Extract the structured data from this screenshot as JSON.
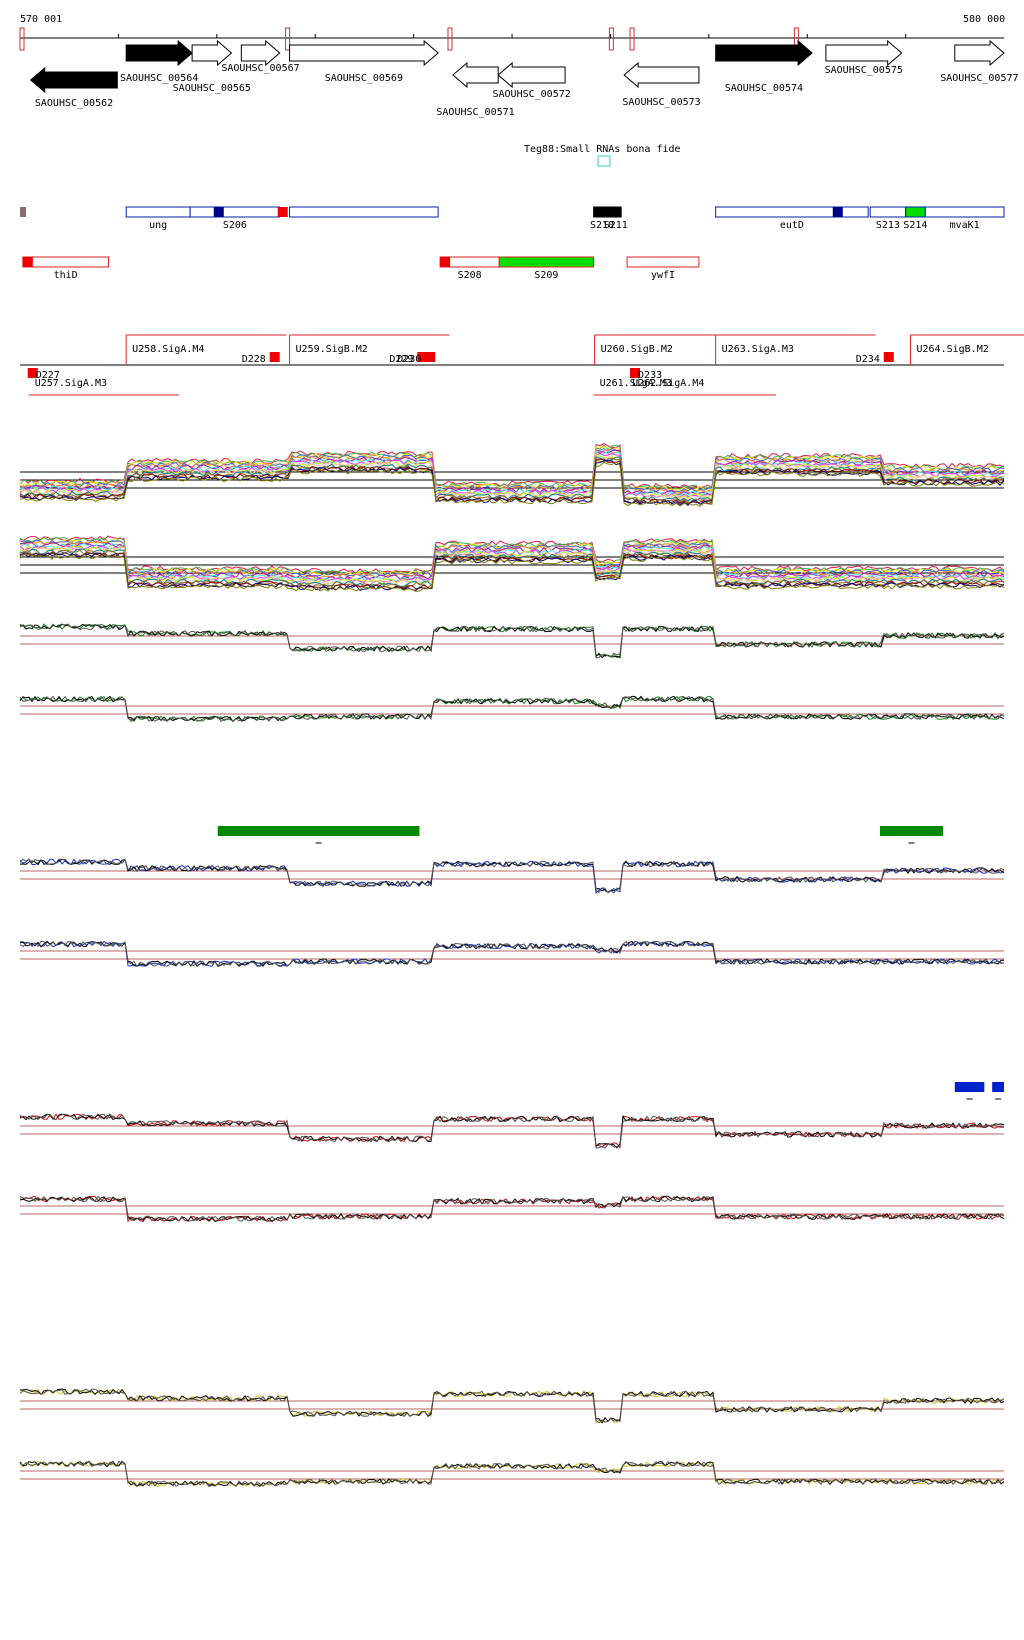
{
  "ruler": {
    "start_label": "570 001",
    "end_label": "580 000",
    "start": 570001,
    "end": 580000
  },
  "annotation_label": "Teg88:Small RNAs bona fide",
  "genes": [
    {
      "id": "g562",
      "label": "SAOUHSC_00562",
      "start": 570110,
      "end": 570990,
      "strand": "-",
      "fill": "black"
    },
    {
      "id": "g564",
      "label": "SAOUHSC_00564",
      "start": 571080,
      "end": 571750,
      "strand": "+",
      "fill": "black"
    },
    {
      "id": "g565",
      "label": "SAOUHSC_00565",
      "start": 571750,
      "end": 572150,
      "strand": "+",
      "fill": "white"
    },
    {
      "id": "g567",
      "label": "SAOUHSC_00567",
      "start": 572250,
      "end": 572640,
      "strand": "+",
      "fill": "white"
    },
    {
      "id": "g569",
      "label": "SAOUHSC_00569",
      "start": 572740,
      "end": 574250,
      "strand": "+",
      "fill": "white"
    },
    {
      "id": "g571",
      "label": "SAOUHSC_00571",
      "start": 574400,
      "end": 574860,
      "strand": "-",
      "fill": "white"
    },
    {
      "id": "g572",
      "label": "SAOUHSC_00572",
      "start": 574860,
      "end": 575540,
      "strand": "-",
      "fill": "white"
    },
    {
      "id": "g573",
      "label": "SAOUHSC_00573",
      "start": 576140,
      "end": 576900,
      "strand": "-",
      "fill": "white"
    },
    {
      "id": "g574",
      "label": "SAOUHSC_00574",
      "start": 577070,
      "end": 578050,
      "strand": "+",
      "fill": "black"
    },
    {
      "id": "g575",
      "label": "SAOUHSC_00575",
      "start": 578190,
      "end": 578960,
      "strand": "+",
      "fill": "white"
    },
    {
      "id": "g577",
      "label": "SAOUHSC_00577",
      "start": 579500,
      "end": 580000,
      "strand": "+",
      "fill": "white"
    }
  ],
  "rna_track_top": [
    {
      "label": "",
      "start": 570001,
      "end": 570080
    },
    {
      "label": "ung",
      "start": 571080,
      "end": 571730
    },
    {
      "label": "S206",
      "start": 571730,
      "end": 572640
    },
    {
      "label": "",
      "start": 572740,
      "end": 574250
    },
    {
      "label": "S210",
      "start": 575830,
      "end": 576000
    },
    {
      "label": "S211",
      "start": 576000,
      "end": 576110
    },
    {
      "label": "eutD",
      "start": 577070,
      "end": 578620
    },
    {
      "label": "S213",
      "start": 578640,
      "end": 579000
    },
    {
      "label": "S214",
      "start": 579000,
      "end": 579200
    },
    {
      "label": "mvaK1",
      "start": 579200,
      "end": 580000
    }
  ],
  "rna_track_bottom": [
    {
      "label": "thiD",
      "start": 570030,
      "end": 570900
    },
    {
      "label": "S208",
      "start": 574270,
      "end": 574870
    },
    {
      "label": "S209",
      "start": 574870,
      "end": 575830
    },
    {
      "label": "ywfI",
      "start": 576170,
      "end": 576900
    }
  ],
  "promoters_top": [
    {
      "label": "U258.SigA.M4",
      "start": 571080
    },
    {
      "label": "D228",
      "start": 572640
    },
    {
      "label": "U259.SigB.M2",
      "start": 572740
    },
    {
      "label": "D229",
      "start": 574140
    },
    {
      "label": "D230",
      "start": 574220
    },
    {
      "label": "U260.SigB.M2",
      "start": 575840
    },
    {
      "label": "U263.SigA.M3",
      "start": 577070
    },
    {
      "label": "D234",
      "start": 578880
    },
    {
      "label": "U264.SigB.M2",
      "start": 579050
    }
  ],
  "promoters_bottom": [
    {
      "label": "D227",
      "start": 570080
    },
    {
      "label": "U257.SigA.M3",
      "start": 570090
    },
    {
      "label": "U261.SigA.M3",
      "start": 575830
    },
    {
      "label": "U262.SigA.M4",
      "start": 576160
    },
    {
      "label": "D233",
      "start": 576200
    }
  ],
  "colors": {
    "track_green": "#118811",
    "track_blue": "#1133cc",
    "track_red": "#cc1111",
    "track_yellow": "#cccc22",
    "ref_lines": "#aa3333",
    "highlight_green": "#008800",
    "highlight_blue": "#0022cc"
  },
  "feature_blocks": [
    {
      "id": "green-block-1",
      "start": 572010,
      "end": 574060,
      "color": "highlight_green"
    },
    {
      "id": "green-block-2",
      "start": 578740,
      "end": 579380,
      "color": "highlight_green"
    },
    {
      "id": "blue-block-1",
      "start": 579500,
      "end": 579800,
      "color": "highlight_blue"
    },
    {
      "id": "blue-block-2",
      "start": 579880,
      "end": 580000,
      "color": "highlight_blue"
    }
  ]
}
